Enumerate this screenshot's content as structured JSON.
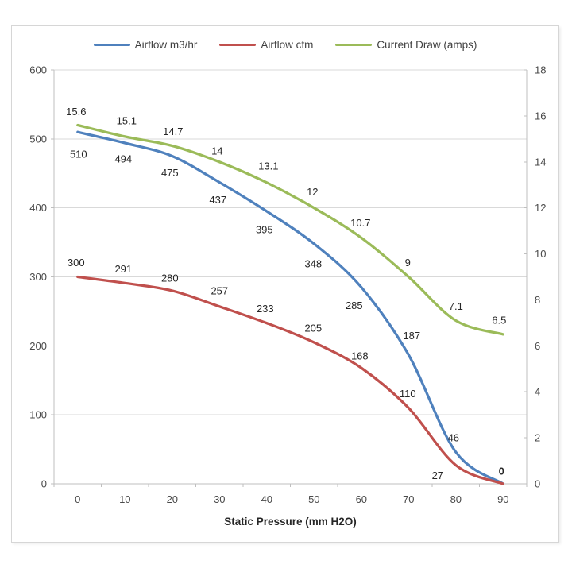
{
  "legend": {
    "items": [
      {
        "label": "Airflow m3/hr",
        "color": "#4F81BD"
      },
      {
        "label": "Airflow cfm",
        "color": "#C0504D"
      },
      {
        "label": "Current Draw (amps)",
        "color": "#9BBB59"
      }
    ]
  },
  "chart_data": {
    "type": "line",
    "title": "",
    "xlabel": "Static Pressure (mm H2O)",
    "ylabel_left": "",
    "ylabel_right": "",
    "x": [
      0,
      10,
      20,
      30,
      40,
      50,
      60,
      70,
      80,
      90
    ],
    "x_tick_labels": [
      "0",
      "10",
      "20",
      "30",
      "40",
      "50",
      "60",
      "70",
      "80",
      "90"
    ],
    "grid": "horizontal",
    "legend_position": "top",
    "left_axis": {
      "min": 0,
      "max": 600,
      "step": 100,
      "tick_labels": [
        "0",
        "100",
        "200",
        "300",
        "400",
        "500",
        "600"
      ]
    },
    "right_axis": {
      "min": 0,
      "max": 18,
      "step": 2,
      "tick_labels": [
        "0",
        "2",
        "4",
        "6",
        "8",
        "10",
        "12",
        "14",
        "16",
        "18"
      ]
    },
    "series": [
      {
        "name": "Airflow m3/hr",
        "color": "#4F81BD",
        "axis": "left",
        "values": [
          510,
          494,
          475,
          437,
          395,
          348,
          285,
          187,
          46,
          0
        ],
        "point_labels": [
          "510",
          "494",
          "475",
          "437",
          "395",
          "348",
          "285",
          "187",
          "46",
          "0"
        ],
        "label_offsets": [
          [
            1,
            28
          ],
          [
            -2,
            20
          ],
          [
            -3,
            21
          ],
          [
            -2,
            22
          ],
          [
            -3,
            23
          ],
          [
            -1,
            25
          ],
          [
            -9,
            23
          ],
          [
            4,
            -24
          ],
          [
            -3,
            -18
          ],
          [
            -2,
            -16
          ]
        ],
        "bold_label_indices": [
          9
        ]
      },
      {
        "name": "Airflow cfm",
        "color": "#C0504D",
        "axis": "left",
        "values": [
          300,
          291,
          280,
          257,
          233,
          205,
          168,
          110,
          27,
          0
        ],
        "point_labels": [
          "300",
          "291",
          "280",
          "257",
          "233",
          "205",
          "168",
          "110",
          "27",
          ""
        ],
        "label_offsets": [
          [
            -2,
            -18
          ],
          [
            -2,
            -18
          ],
          [
            -3,
            -16
          ],
          [
            0,
            -20
          ],
          [
            -2,
            -18
          ],
          [
            -1,
            -18
          ],
          [
            -2,
            -15
          ],
          [
            -1,
            -18
          ],
          [
            -23,
            13
          ],
          [
            0,
            0
          ]
        ],
        "bold_label_indices": []
      },
      {
        "name": "Current Draw (amps)",
        "color": "#9BBB59",
        "axis": "right",
        "values": [
          15.6,
          15.1,
          14.7,
          14,
          13.1,
          12,
          10.7,
          9,
          7.1,
          6.5
        ],
        "point_labels": [
          "15.6",
          "15.1",
          "14.7",
          "14",
          "13.1",
          "12",
          "10.7",
          "9",
          "7.1",
          "6.5"
        ],
        "label_offsets": [
          [
            -2,
            -17
          ],
          [
            2,
            -20
          ],
          [
            1,
            -18
          ],
          [
            -3,
            -14
          ],
          [
            2,
            -21
          ],
          [
            -2,
            -20
          ],
          [
            -1,
            -19
          ],
          [
            -1,
            -18
          ],
          [
            0,
            -18
          ],
          [
            -5,
            -18
          ]
        ],
        "bold_label_indices": []
      }
    ]
  },
  "colors": {
    "background": "#FFFFFF",
    "frame_border": "#D6D6D6",
    "gridline": "#D9D9D9",
    "axis_line": "#BFBFBF",
    "axis_label": "#4A4A4A",
    "data_label": "#262626"
  }
}
